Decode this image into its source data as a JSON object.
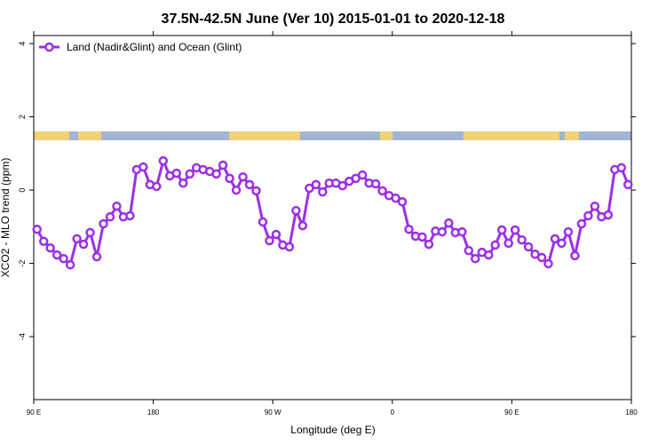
{
  "chart_data": {
    "type": "line",
    "title": "37.5N-42.5N June (Ver 10)   2015-01-01 to 2020-12-18",
    "x_label": "Longitude (deg E)",
    "y_label": "XCO2 - MLO trend (ppm)",
    "x": [
      92.5,
      97.5,
      102.5,
      107.5,
      112.5,
      117.5,
      122.5,
      127.5,
      132.5,
      137.5,
      142.5,
      147.5,
      152.5,
      157.5,
      162.5,
      167.5,
      172.5,
      177.5,
      182.5,
      187.5,
      192.5,
      197.5,
      202.5,
      207.5,
      212.5,
      217.5,
      222.5,
      227.5,
      232.5,
      237.5,
      242.5,
      247.5,
      252.5,
      257.5,
      262.5,
      267.5,
      272.5,
      277.5,
      282.5,
      287.5,
      292.5,
      297.5,
      302.5,
      307.5,
      312.5,
      317.5,
      322.5,
      327.5,
      332.5,
      337.5,
      342.5,
      347.5,
      352.5,
      357.5,
      362.5,
      367.5,
      372.5,
      377.5,
      382.5,
      387.5,
      392.5,
      397.5,
      402.5,
      407.5,
      412.5,
      417.5,
      422.5,
      427.5,
      432.5,
      437.5,
      442.5,
      447.5,
      452.5,
      457.5,
      462.5,
      467.5,
      472.5,
      477.5,
      482.5,
      487.5,
      492.5,
      497.5,
      502.5,
      507.5,
      512.5,
      517.5,
      522.5,
      527.5,
      532.5,
      537.5
    ],
    "series": [
      {
        "name": "Land (Nadir&Glint) and Ocean (Glint)",
        "color": "#9b30e6",
        "values": [
          -1.07,
          -1.4,
          -1.58,
          -1.77,
          -1.87,
          -2.04,
          -1.33,
          -1.48,
          -1.16,
          -1.82,
          -0.92,
          -0.73,
          -0.44,
          -0.73,
          -0.7,
          0.56,
          0.63,
          0.15,
          0.1,
          0.8,
          0.39,
          0.46,
          0.19,
          0.44,
          0.61,
          0.56,
          0.51,
          0.44,
          0.68,
          0.32,
          0.0,
          0.36,
          0.15,
          -0.02,
          -0.87,
          -1.38,
          -1.21,
          -1.5,
          -1.55,
          -0.56,
          -0.97,
          0.05,
          0.15,
          -0.05,
          0.19,
          0.19,
          0.12,
          0.24,
          0.32,
          0.41,
          0.19,
          0.17,
          -0.02,
          -0.15,
          -0.22,
          -0.32,
          -1.07,
          -1.26,
          -1.28,
          -1.48,
          -1.12,
          -1.14,
          -0.9,
          -1.16,
          -1.14,
          -1.65,
          -1.87,
          -1.7,
          -1.77,
          -1.5,
          -1.09,
          -1.45,
          -1.09,
          -1.36,
          -1.55,
          -1.75,
          -1.84,
          -2.01,
          -1.33,
          -1.45,
          -1.14,
          -1.79,
          -0.92,
          -0.7,
          -0.44,
          -0.73,
          -0.68,
          0.56,
          0.61,
          0.15
        ]
      }
    ],
    "xlim": [
      90,
      540
    ],
    "xticks": [
      {
        "value": 90,
        "label": "90 E"
      },
      180,
      {
        "value": 270,
        "label": "90 W"
      },
      {
        "value": 360,
        "label": "0"
      },
      {
        "value": 450,
        "label": "90 E"
      },
      {
        "value": 540,
        "label": "180"
      }
    ],
    "ylim": [
      -5.72,
      4.22
    ],
    "yticks": [
      -4,
      -2,
      0,
      2,
      4
    ],
    "legend": "top-left"
  }
}
